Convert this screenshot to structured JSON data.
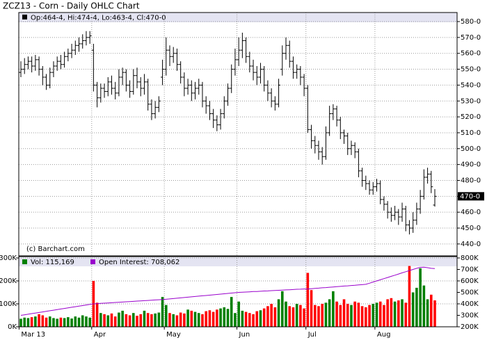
{
  "chart_data": [
    {
      "type": "ohlc",
      "title": "ZCZ13 - Corn - Daily OHLC Chart",
      "legend_text": "Op:464-4, Hi:474-4, Lo:463-4, Cl:470-0",
      "credit": "(c) Barchart.com",
      "color": "#000000",
      "grid": true,
      "open": [
        548,
        550,
        553,
        555,
        552,
        556,
        550,
        545,
        540,
        548,
        552,
        555,
        553,
        558,
        560,
        562,
        565,
        566,
        568,
        570,
        562,
        540,
        532,
        538,
        536,
        542,
        538,
        535,
        545,
        548,
        540,
        536,
        546,
        542,
        538,
        542,
        528,
        522,
        526,
        545,
        550,
        562,
        558,
        560,
        553,
        545,
        538,
        540,
        535,
        538,
        540,
        530,
        527,
        522,
        518,
        515,
        522,
        530,
        538,
        550,
        556,
        562,
        568,
        558,
        552,
        548,
        545,
        550,
        540,
        535,
        530,
        528,
        550,
        560,
        565,
        555,
        548,
        550,
        545,
        538,
        512,
        505,
        502,
        498,
        495,
        510,
        522,
        525,
        518,
        510,
        508,
        500,
        502,
        498,
        486,
        480,
        478,
        474,
        476,
        478,
        468,
        465,
        460,
        458,
        460,
        457,
        462,
        452,
        450,
        455,
        462,
        470,
        482,
        484,
        464.5
      ],
      "high": [
        555,
        557,
        558,
        558,
        559,
        558,
        552,
        547,
        551,
        555,
        558,
        559,
        561,
        563,
        566,
        568,
        570,
        572,
        574,
        574,
        566,
        542,
        541,
        541,
        545,
        546,
        542,
        550,
        551,
        550,
        543,
        550,
        551,
        545,
        547,
        544,
        531,
        530,
        533,
        556,
        570,
        565,
        564,
        563,
        555,
        548,
        544,
        543,
        542,
        544,
        542,
        533,
        530,
        525,
        521,
        525,
        533,
        541,
        553,
        563,
        570,
        573,
        570,
        561,
        556,
        552,
        554,
        552,
        543,
        538,
        533,
        544,
        565,
        570,
        568,
        558,
        553,
        552,
        547,
        540,
        515,
        508,
        505,
        501,
        514,
        527,
        528,
        527,
        520,
        512,
        510,
        505,
        504,
        500,
        488,
        483,
        480,
        479,
        481,
        480,
        470,
        467,
        463,
        464,
        462,
        466,
        464,
        455,
        460,
        466,
        474,
        487,
        488,
        486,
        474.5
      ],
      "low": [
        545,
        547,
        550,
        548,
        549,
        546,
        540,
        537,
        538,
        545,
        549,
        550,
        551,
        555,
        557,
        559,
        561,
        563,
        565,
        566,
        536,
        526,
        529,
        532,
        533,
        534,
        531,
        533,
        540,
        536,
        532,
        534,
        538,
        533,
        534,
        524,
        518,
        519,
        523,
        540,
        546,
        552,
        554,
        549,
        541,
        533,
        534,
        530,
        531,
        534,
        526,
        522,
        518,
        513,
        511,
        512,
        519,
        527,
        535,
        546,
        552,
        557,
        554,
        548,
        543,
        540,
        541,
        536,
        530,
        526,
        524,
        526,
        546,
        556,
        551,
        544,
        544,
        540,
        533,
        510,
        500,
        497,
        493,
        490,
        493,
        508,
        518,
        514,
        506,
        503,
        496,
        496,
        494,
        482,
        476,
        474,
        471,
        471,
        473,
        465,
        461,
        456,
        454,
        455,
        452,
        454,
        448,
        446,
        447,
        452,
        459,
        468,
        478,
        472,
        463.5
      ],
      "close": [
        550,
        553,
        555,
        552,
        556,
        550,
        545,
        540,
        548,
        552,
        555,
        553,
        558,
        560,
        562,
        565,
        566,
        568,
        570,
        571,
        540,
        532,
        538,
        536,
        542,
        538,
        535,
        545,
        548,
        540,
        536,
        546,
        542,
        538,
        542,
        528,
        522,
        526,
        530,
        550,
        562,
        558,
        560,
        553,
        545,
        538,
        540,
        535,
        538,
        540,
        530,
        527,
        522,
        518,
        515,
        522,
        530,
        538,
        550,
        556,
        562,
        568,
        558,
        552,
        548,
        545,
        550,
        540,
        535,
        530,
        528,
        540,
        560,
        565,
        555,
        548,
        550,
        545,
        538,
        512,
        505,
        502,
        498,
        495,
        510,
        522,
        525,
        518,
        510,
        508,
        500,
        502,
        498,
        486,
        480,
        478,
        474,
        476,
        478,
        468,
        465,
        460,
        458,
        460,
        457,
        462,
        452,
        450,
        455,
        462,
        470,
        482,
        484,
        476,
        470
      ],
      "ylim": [
        432.5,
        585.7
      ],
      "yticks": [
        {
          "value": 440,
          "label": "440-0"
        },
        {
          "value": 450,
          "label": "450-0"
        },
        {
          "value": 460,
          "label": "460-0"
        },
        {
          "value": 470,
          "label": "470-0"
        },
        {
          "value": 480,
          "label": "480-0"
        },
        {
          "value": 490,
          "label": "490-0"
        },
        {
          "value": 500,
          "label": "500-0"
        },
        {
          "value": 510,
          "label": "510-0"
        },
        {
          "value": 520,
          "label": "520-0"
        },
        {
          "value": 530,
          "label": "530-0"
        },
        {
          "value": 540,
          "label": "540-0"
        },
        {
          "value": 550,
          "label": "550-0"
        },
        {
          "value": 560,
          "label": "560-0"
        },
        {
          "value": 570,
          "label": "570-0"
        },
        {
          "value": 580,
          "label": "580-0"
        }
      ],
      "last_label": {
        "value": 470,
        "label": "470-0"
      }
    },
    {
      "type": "bar",
      "grid": true,
      "categories": [
        "Mar 13",
        null,
        null,
        null,
        null,
        null,
        null,
        null,
        null,
        null,
        null,
        null,
        null,
        null,
        null,
        null,
        null,
        null,
        null,
        null,
        "Apr",
        null,
        null,
        null,
        null,
        null,
        null,
        null,
        null,
        null,
        null,
        null,
        null,
        null,
        null,
        null,
        null,
        null,
        null,
        null,
        "May",
        null,
        null,
        null,
        null,
        null,
        null,
        null,
        null,
        null,
        null,
        null,
        null,
        null,
        null,
        null,
        null,
        null,
        null,
        null,
        "Jun",
        null,
        null,
        null,
        null,
        null,
        null,
        null,
        null,
        null,
        null,
        null,
        null,
        null,
        null,
        null,
        null,
        null,
        null,
        "Jul",
        null,
        null,
        null,
        null,
        null,
        null,
        null,
        null,
        null,
        null,
        null,
        null,
        null,
        null,
        null,
        null,
        null,
        null,
        "Aug",
        null,
        null,
        null,
        null,
        null,
        null,
        null,
        null,
        null,
        null,
        null,
        null,
        null,
        null,
        null,
        null
      ],
      "series": [
        {
          "name": "Vol: 115,169",
          "up_color": "#008000",
          "down_color": "#ff0000",
          "flat_color": "#0000cc",
          "values": [
            35000,
            40000,
            38000,
            42000,
            45000,
            55000,
            50000,
            40000,
            45000,
            38000,
            35000,
            40000,
            38000,
            42000,
            36000,
            45000,
            40000,
            50000,
            45000,
            40000,
            200000,
            105000,
            60000,
            55000,
            50000,
            58000,
            45000,
            62000,
            70000,
            55000,
            50000,
            60000,
            48000,
            55000,
            70000,
            60000,
            55000,
            58000,
            62000,
            130000,
            95000,
            60000,
            55000,
            50000,
            62000,
            58000,
            75000,
            70000,
            65000,
            60000,
            55000,
            68000,
            72000,
            65000,
            75000,
            80000,
            85000,
            78000,
            130000,
            60000,
            110000,
            70000,
            65000,
            60000,
            55000,
            68000,
            72000,
            80000,
            90000,
            100000,
            85000,
            120000,
            155000,
            110000,
            90000,
            85000,
            100000,
            95000,
            80000,
            235000,
            160000,
            95000,
            90000,
            100000,
            105000,
            120000,
            155000,
            110000,
            95000,
            120000,
            100000,
            95000,
            110000,
            105000,
            90000,
            85000,
            95000,
            100000,
            105000,
            110000,
            95000,
            120000,
            125000,
            110000,
            115000,
            120000,
            105000,
            265000,
            150000,
            170000,
            255000,
            180000,
            120000,
            140000,
            115169
          ]
        },
        {
          "name": "Open Interest: 708,062",
          "color": "#9900cc",
          "axis": "y2",
          "values": [
            300000,
            305000,
            310000,
            315000,
            320000,
            325000,
            330000,
            335000,
            340000,
            345000,
            350000,
            355000,
            360000,
            365000,
            370000,
            375000,
            380000,
            385000,
            390000,
            395000,
            400000,
            402000,
            404000,
            406000,
            408000,
            410000,
            412000,
            414000,
            416000,
            418000,
            420000,
            422000,
            424000,
            426000,
            428000,
            430000,
            432000,
            434000,
            436000,
            438000,
            440000,
            443000,
            446000,
            449000,
            452000,
            455000,
            458000,
            461000,
            464000,
            467000,
            470000,
            473000,
            476000,
            479000,
            482000,
            485000,
            488000,
            491000,
            494000,
            497000,
            500000,
            502000,
            503000,
            505000,
            507000,
            508000,
            510000,
            512000,
            513000,
            515000,
            517000,
            518000,
            520000,
            522000,
            523000,
            525000,
            527000,
            528000,
            530000,
            530000,
            532000,
            535000,
            537000,
            540000,
            542000,
            545000,
            547000,
            550000,
            552000,
            555000,
            557000,
            560000,
            562000,
            565000,
            567000,
            570000,
            580000,
            590000,
            600000,
            610000,
            620000,
            630000,
            640000,
            650000,
            660000,
            670000,
            680000,
            690000,
            700000,
            710000,
            718000,
            720000,
            715000,
            710000,
            708062
          ]
        }
      ],
      "ylim": [
        0,
        300000
      ],
      "yticks": [
        {
          "value": 0,
          "label": "0K"
        },
        {
          "value": 100000,
          "label": "100K"
        },
        {
          "value": 200000,
          "label": "200K"
        },
        {
          "value": 300000,
          "label": "300K"
        }
      ],
      "y2lim": [
        200000,
        800000
      ],
      "y2ticks": [
        {
          "value": 200000,
          "label": "200K"
        },
        {
          "value": 300000,
          "label": "300K"
        },
        {
          "value": 400000,
          "label": "400K"
        },
        {
          "value": 500000,
          "label": "500K"
        },
        {
          "value": 600000,
          "label": "600K"
        },
        {
          "value": 700000,
          "label": "700K"
        },
        {
          "value": 800000,
          "label": "800K"
        }
      ]
    }
  ]
}
